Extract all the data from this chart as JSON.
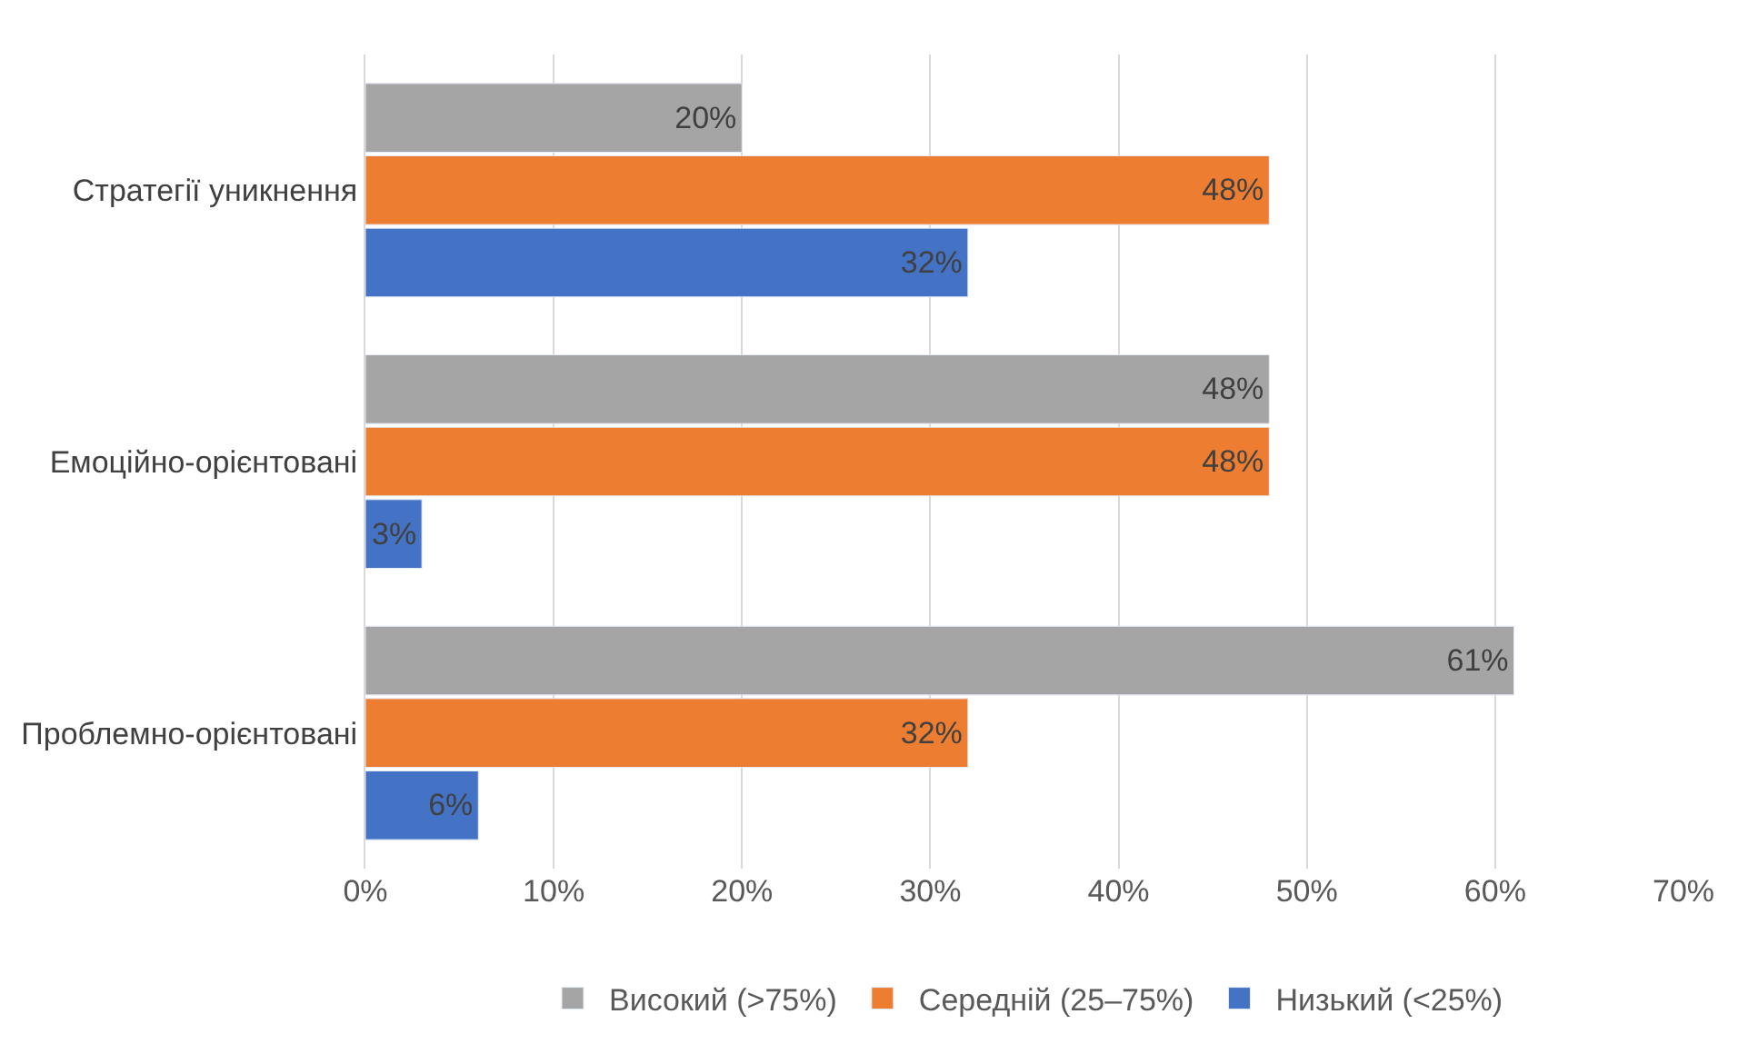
{
  "chart_data": {
    "type": "bar",
    "orientation": "horizontal",
    "categories": [
      "Стратегії уникнення",
      "Емоційно-орієнтовані",
      "Проблемно-орієнтовані"
    ],
    "series": [
      {
        "name": "Високий (>75%)",
        "color": "#a5a5a5",
        "values": [
          20,
          48,
          61
        ],
        "value_labels": [
          "20%",
          "48%",
          "61%"
        ]
      },
      {
        "name": "Середній (25–75%)",
        "color": "#ed7d31",
        "values": [
          48,
          48,
          32
        ],
        "value_labels": [
          "48%",
          "48%",
          "32%"
        ]
      },
      {
        "name": "Низький (<25%)",
        "color": "#4472c4",
        "values": [
          32,
          3,
          6
        ],
        "value_labels": [
          "32%",
          "3%",
          "6%"
        ]
      }
    ],
    "xlim": [
      0,
      70
    ],
    "xticks": [
      {
        "value": 0,
        "label": "0%"
      },
      {
        "value": 10,
        "label": "10%"
      },
      {
        "value": 20,
        "label": "20%"
      },
      {
        "value": 30,
        "label": "30%"
      },
      {
        "value": 40,
        "label": "40%"
      },
      {
        "value": 50,
        "label": "50%"
      },
      {
        "value": 60,
        "label": "60%"
      },
      {
        "value": 70,
        "label": "70%"
      }
    ],
    "grid": "x",
    "legend": "bottom"
  }
}
